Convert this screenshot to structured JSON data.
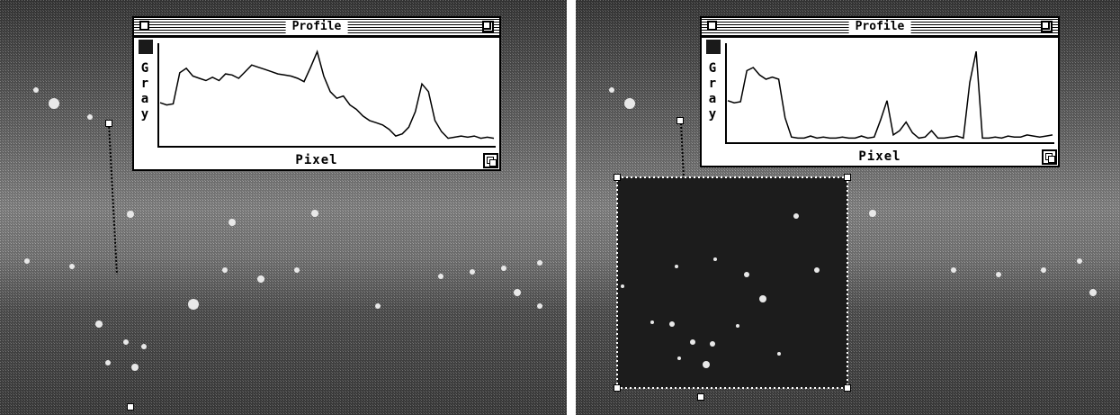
{
  "left_window": {
    "title": "Profile",
    "y_axis_label": "Gray",
    "x_axis_label": "Pixel",
    "profile_values": [
      38,
      36,
      37,
      65,
      69,
      62,
      60,
      58,
      61,
      58,
      64,
      63,
      60,
      66,
      72,
      70,
      68,
      66,
      64,
      63,
      62,
      60,
      57,
      70,
      84,
      62,
      48,
      42,
      44,
      36,
      32,
      26,
      22,
      20,
      18,
      14,
      8,
      10,
      16,
      30,
      55,
      48,
      22,
      12,
      6,
      7,
      8,
      7,
      8,
      6,
      7,
      6
    ]
  },
  "right_window": {
    "title": "Profile",
    "y_axis_label": "Gray",
    "x_axis_label": "Pixel",
    "profile_values": [
      38,
      36,
      37,
      66,
      69,
      62,
      58,
      60,
      58,
      22,
      4,
      3,
      3,
      5,
      3,
      4,
      3,
      3,
      4,
      3,
      3,
      5,
      3,
      4,
      20,
      38,
      6,
      10,
      18,
      8,
      3,
      4,
      10,
      3,
      3,
      4,
      5,
      3,
      55,
      84,
      3,
      3,
      4,
      3,
      5,
      4,
      4,
      6,
      5,
      4,
      5,
      6
    ]
  },
  "colors": {
    "image_background": "#3a3a3a",
    "window_background": "#ffffff",
    "ink": "#000000"
  }
}
